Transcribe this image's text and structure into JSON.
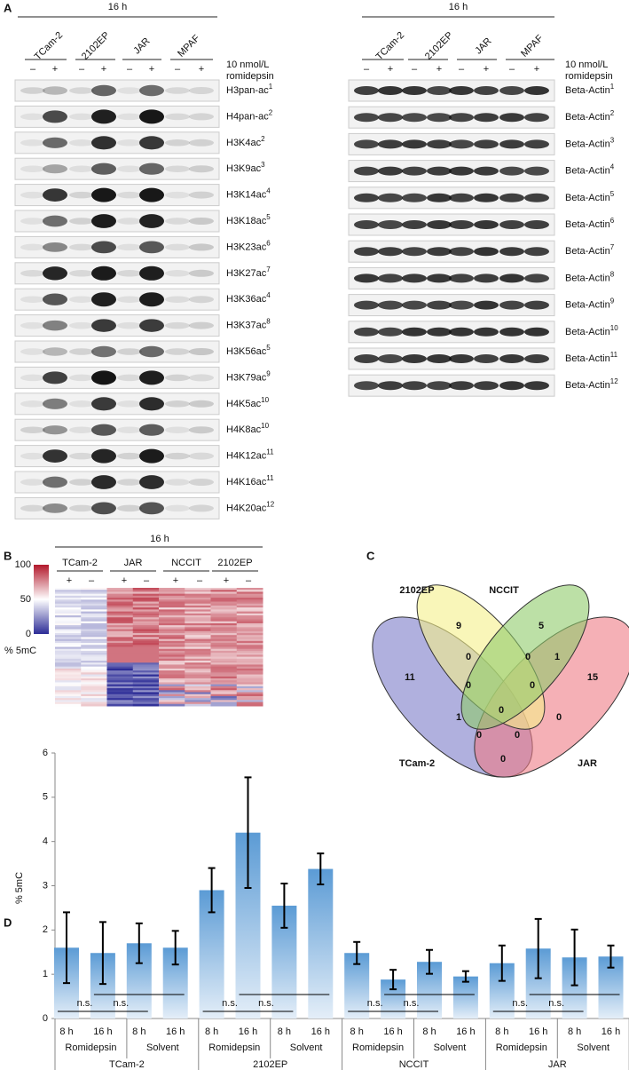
{
  "panel_a": {
    "letter": "A",
    "left": {
      "time": "16 h",
      "cell_lines": [
        "TCam-2",
        "2102EP",
        "JAR",
        "MPAF"
      ],
      "signs": [
        "–",
        "+"
      ],
      "treatment": [
        "10 nmol/L",
        "romidepsin"
      ],
      "rows": [
        {
          "name": "H3pan-ac",
          "ref": "1"
        },
        {
          "name": "H4pan-ac",
          "ref": "2"
        },
        {
          "name": "H3K4ac",
          "ref": "2"
        },
        {
          "name": "H3K9ac",
          "ref": "3"
        },
        {
          "name": "H3K14ac",
          "ref": "4"
        },
        {
          "name": "H3K18ac",
          "ref": "5"
        },
        {
          "name": "H3K23ac",
          "ref": "6"
        },
        {
          "name": "H3K27ac",
          "ref": "7"
        },
        {
          "name": "H3K36ac",
          "ref": "4"
        },
        {
          "name": "H3K37ac",
          "ref": "8"
        },
        {
          "name": "H3K56ac",
          "ref": "5"
        },
        {
          "name": "H3K79ac",
          "ref": "9"
        },
        {
          "name": "H4K5ac",
          "ref": "10"
        },
        {
          "name": "H4K8ac",
          "ref": "10"
        },
        {
          "name": "H4K12ac",
          "ref": "11"
        },
        {
          "name": "H4K16ac",
          "ref": "11"
        },
        {
          "name": "H4K20ac",
          "ref": "12"
        }
      ]
    },
    "right": {
      "time": "16 h",
      "cell_lines": [
        "TCam-2",
        "2102EP",
        "JAR",
        "MPAF"
      ],
      "signs": [
        "–",
        "+"
      ],
      "treatment": [
        "10 nmol/L",
        "romidepsin"
      ],
      "rows": [
        {
          "name": "Beta-Actin",
          "ref": "1"
        },
        {
          "name": "Beta-Actin",
          "ref": "2"
        },
        {
          "name": "Beta-Actin",
          "ref": "3"
        },
        {
          "name": "Beta-Actin",
          "ref": "4"
        },
        {
          "name": "Beta-Actin",
          "ref": "5"
        },
        {
          "name": "Beta-Actin",
          "ref": "6"
        },
        {
          "name": "Beta-Actin",
          "ref": "7"
        },
        {
          "name": "Beta-Actin",
          "ref": "8"
        },
        {
          "name": "Beta-Actin",
          "ref": "9"
        },
        {
          "name": "Beta-Actin",
          "ref": "10"
        },
        {
          "name": "Beta-Actin",
          "ref": "11"
        },
        {
          "name": "Beta-Actin",
          "ref": "12"
        }
      ]
    }
  },
  "panel_b": {
    "letter": "B",
    "time": "16 h",
    "cell_lines": [
      "TCam-2",
      "JAR",
      "NCCIT",
      "2102EP"
    ],
    "signs": [
      "+",
      "–"
    ],
    "colorbar_ticks": [
      100,
      50,
      0
    ],
    "colorbar_label": "% 5mC"
  },
  "panel_c": {
    "letter": "C",
    "sets": [
      {
        "name": "2102EP",
        "color": "#b5a52a"
      },
      {
        "name": "NCCIT",
        "color": "#2e8b3e"
      },
      {
        "name": "TCam-2",
        "color": "#2e3f9e"
      },
      {
        "name": "JAR",
        "color": "#d62728"
      }
    ],
    "regions": [
      9,
      5,
      11,
      15,
      0,
      0,
      1,
      0,
      0,
      1,
      0,
      0,
      0,
      0,
      0
    ]
  },
  "panel_d": {
    "letter": "D"
  },
  "chart_data": {
    "type": "bar",
    "ylabel": "% 5mC",
    "color": "#5b9bd5",
    "categories": [
      "8 h",
      "16 h",
      "8 h",
      "16 h",
      "8 h",
      "16 h",
      "8 h",
      "16 h",
      "8 h",
      "16 h",
      "8 h",
      "16 h",
      "8 h",
      "16 h",
      "8 h",
      "16 h"
    ],
    "subgroups": [
      "Romidepsin",
      "Solvent"
    ],
    "groups": [
      "TCam-2",
      "2102EP",
      "NCCIT",
      "JAR"
    ],
    "values": [
      1.6,
      1.48,
      1.7,
      1.6,
      2.9,
      4.2,
      2.55,
      3.38,
      1.48,
      0.88,
      1.28,
      0.95,
      1.25,
      1.58,
      1.38,
      1.4
    ],
    "errors": [
      0.8,
      0.7,
      0.45,
      0.38,
      0.5,
      1.25,
      0.5,
      0.35,
      0.25,
      0.22,
      0.27,
      0.12,
      0.4,
      0.67,
      0.63,
      0.25
    ],
    "significance": "n.s.",
    "ylim": [
      0,
      6
    ],
    "yticks": [
      0,
      1,
      2,
      3,
      4,
      5,
      6
    ]
  }
}
